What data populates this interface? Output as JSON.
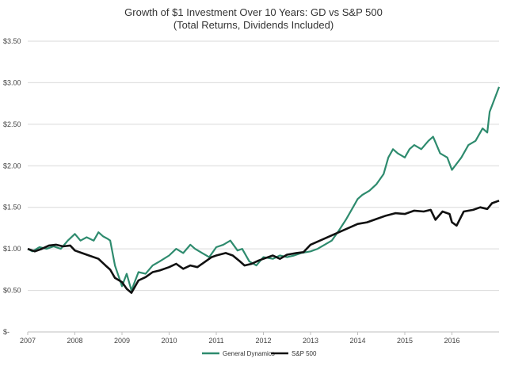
{
  "chart_data": {
    "type": "line",
    "title": "Growth of $1 Investment Over 10 Years: GD vs S&P 500",
    "subtitle": "(Total Returns, Dividends Included)",
    "x_tick_labels": [
      "2007",
      "2008",
      "2009",
      "2010",
      "2011",
      "2012",
      "2013",
      "2014",
      "2015",
      "2016"
    ],
    "y_tick_labels": [
      "$-",
      "$0.50",
      "$1.00",
      "$1.50",
      "$2.00",
      "$2.50",
      "$3.00",
      "$3.50"
    ],
    "y_ticks": [
      0,
      0.5,
      1.0,
      1.5,
      2.0,
      2.5,
      3.0,
      3.5
    ],
    "ylim": [
      0,
      3.5
    ],
    "xlim": [
      2007.0,
      2017.0
    ],
    "grid": true,
    "legend_position": "bottom",
    "series": [
      {
        "name": "General Dynamics",
        "color": "#2e8b6e",
        "x": [
          2007.0,
          2007.1,
          2007.25,
          2007.4,
          2007.55,
          2007.7,
          2007.85,
          2008.0,
          2008.12,
          2008.25,
          2008.4,
          2008.5,
          2008.6,
          2008.7,
          2008.75,
          2008.85,
          2009.0,
          2009.1,
          2009.2,
          2009.35,
          2009.5,
          2009.65,
          2009.8,
          2010.0,
          2010.15,
          2010.3,
          2010.45,
          2010.55,
          2010.7,
          2010.85,
          2011.0,
          2011.15,
          2011.3,
          2011.45,
          2011.55,
          2011.7,
          2011.85,
          2012.0,
          2012.2,
          2012.35,
          2012.5,
          2012.65,
          2012.8,
          2013.0,
          2013.15,
          2013.3,
          2013.45,
          2013.6,
          2013.75,
          2013.9,
          2014.0,
          2014.1,
          2014.25,
          2014.4,
          2014.55,
          2014.65,
          2014.75,
          2014.85,
          2015.0,
          2015.1,
          2015.2,
          2015.35,
          2015.5,
          2015.6,
          2015.75,
          2015.9,
          2016.0,
          2016.2,
          2016.35,
          2016.5,
          2016.65,
          2016.75,
          2016.8,
          2016.9,
          2017.0
        ],
        "values": [
          1.0,
          0.97,
          1.02,
          1.0,
          1.03,
          1.0,
          1.1,
          1.18,
          1.1,
          1.14,
          1.1,
          1.2,
          1.15,
          1.12,
          1.1,
          0.8,
          0.55,
          0.7,
          0.5,
          0.72,
          0.7,
          0.8,
          0.85,
          0.92,
          1.0,
          0.95,
          1.05,
          1.0,
          0.95,
          0.9,
          1.02,
          1.05,
          1.1,
          0.98,
          1.0,
          0.85,
          0.8,
          0.9,
          0.88,
          0.92,
          0.9,
          0.92,
          0.95,
          0.97,
          1.0,
          1.05,
          1.1,
          1.22,
          1.35,
          1.5,
          1.6,
          1.65,
          1.7,
          1.78,
          1.9,
          2.1,
          2.2,
          2.15,
          2.1,
          2.2,
          2.25,
          2.2,
          2.3,
          2.35,
          2.15,
          2.1,
          1.95,
          2.1,
          2.25,
          2.3,
          2.45,
          2.4,
          2.65,
          2.8,
          2.95
        ]
      },
      {
        "name": "S&P 500",
        "color": "#111111",
        "x": [
          2007.0,
          2007.15,
          2007.3,
          2007.45,
          2007.6,
          2007.75,
          2007.9,
          2008.0,
          2008.15,
          2008.3,
          2008.5,
          2008.65,
          2008.75,
          2008.85,
          2009.0,
          2009.1,
          2009.2,
          2009.35,
          2009.5,
          2009.65,
          2009.8,
          2010.0,
          2010.15,
          2010.3,
          2010.45,
          2010.6,
          2010.75,
          2010.9,
          2011.0,
          2011.2,
          2011.35,
          2011.5,
          2011.6,
          2011.75,
          2011.9,
          2012.0,
          2012.2,
          2012.35,
          2012.5,
          2012.7,
          2012.85,
          2013.0,
          2013.2,
          2013.4,
          2013.6,
          2013.8,
          2014.0,
          2014.2,
          2014.4,
          2014.6,
          2014.8,
          2015.0,
          2015.2,
          2015.4,
          2015.55,
          2015.65,
          2015.8,
          2015.95,
          2016.0,
          2016.1,
          2016.25,
          2016.45,
          2016.6,
          2016.75,
          2016.85,
          2017.0
        ],
        "values": [
          1.0,
          0.97,
          1.0,
          1.04,
          1.05,
          1.03,
          1.04,
          0.98,
          0.95,
          0.92,
          0.88,
          0.8,
          0.75,
          0.65,
          0.6,
          0.52,
          0.47,
          0.62,
          0.66,
          0.72,
          0.74,
          0.78,
          0.82,
          0.76,
          0.8,
          0.78,
          0.84,
          0.9,
          0.92,
          0.95,
          0.92,
          0.85,
          0.8,
          0.82,
          0.86,
          0.88,
          0.92,
          0.88,
          0.93,
          0.95,
          0.96,
          1.05,
          1.1,
          1.15,
          1.2,
          1.25,
          1.3,
          1.32,
          1.36,
          1.4,
          1.43,
          1.42,
          1.46,
          1.45,
          1.47,
          1.35,
          1.45,
          1.42,
          1.32,
          1.28,
          1.45,
          1.47,
          1.5,
          1.48,
          1.55,
          1.58
        ]
      }
    ]
  }
}
